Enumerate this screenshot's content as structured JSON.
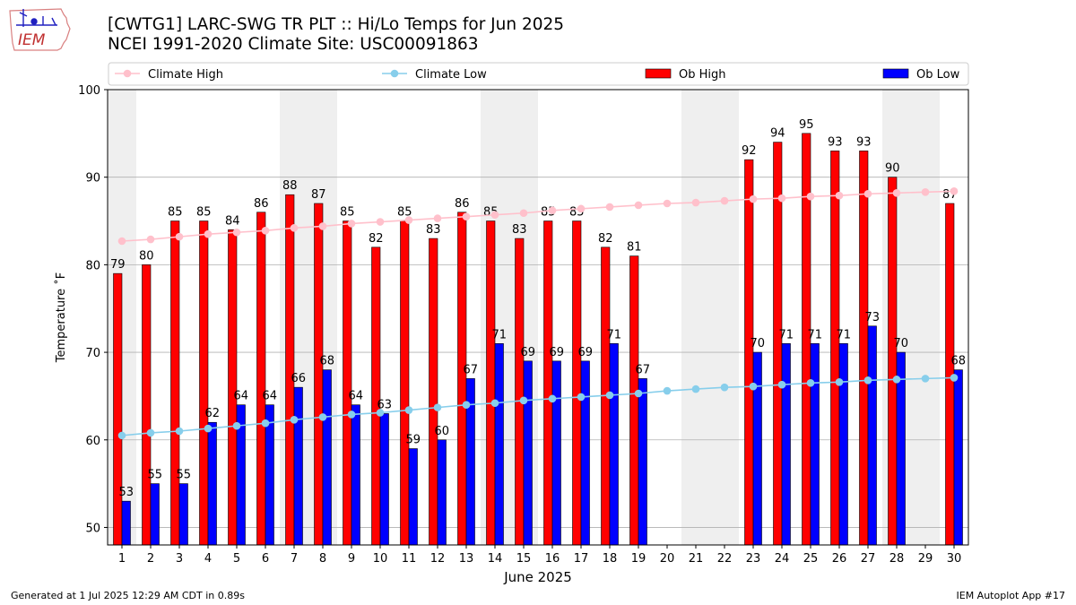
{
  "header": {
    "title": "[CWTG1] LARC-SWG TR PLT :: Hi/Lo Temps for Jun 2025",
    "subtitle": "NCEI 1991-2020 Climate Site: USC00091863",
    "logo_text": "IEM"
  },
  "footer": {
    "generated": "Generated at 1 Jul 2025 12:29 AM CDT in 0.89s",
    "app": "IEM Autoplot App #17"
  },
  "chart_data": {
    "type": "bar",
    "xlabel": "June 2025",
    "ylabel": "Temperature ˚F",
    "ylim": [
      48,
      100
    ],
    "yticks": [
      50,
      60,
      70,
      80,
      90,
      100
    ],
    "grid": "horizontal",
    "legend_position": "top",
    "shaded_days": [
      1,
      7,
      8,
      14,
      15,
      21,
      22,
      28,
      29
    ],
    "categories": [
      1,
      2,
      3,
      4,
      5,
      6,
      7,
      8,
      9,
      10,
      11,
      12,
      13,
      14,
      15,
      16,
      17,
      18,
      19,
      20,
      21,
      22,
      23,
      24,
      25,
      26,
      27,
      28,
      29,
      30
    ],
    "series": [
      {
        "name": "Climate High",
        "kind": "line",
        "color": "#ffc0cb",
        "values": [
          82.7,
          82.9,
          83.2,
          83.5,
          83.7,
          83.9,
          84.2,
          84.4,
          84.7,
          84.9,
          85.1,
          85.3,
          85.5,
          85.7,
          85.9,
          86.2,
          86.4,
          86.6,
          86.8,
          87.0,
          87.1,
          87.3,
          87.5,
          87.6,
          87.8,
          87.9,
          88.1,
          88.2,
          88.3,
          88.4
        ]
      },
      {
        "name": "Climate Low",
        "kind": "line",
        "color": "#87ceeb",
        "values": [
          60.5,
          60.8,
          61.0,
          61.3,
          61.6,
          61.9,
          62.3,
          62.6,
          62.9,
          63.1,
          63.4,
          63.7,
          64.0,
          64.2,
          64.5,
          64.7,
          64.9,
          65.1,
          65.3,
          65.6,
          65.8,
          66.0,
          66.1,
          66.3,
          66.5,
          66.6,
          66.8,
          66.9,
          67.0,
          67.1
        ]
      },
      {
        "name": "Ob High",
        "kind": "bar",
        "color": "#ff0000",
        "values": [
          79,
          80,
          85,
          85,
          84,
          86,
          88,
          87,
          85,
          82,
          85,
          83,
          86,
          85,
          83,
          85,
          85,
          82,
          81,
          null,
          null,
          null,
          92,
          94,
          95,
          93,
          93,
          90,
          null,
          87
        ]
      },
      {
        "name": "Ob Low",
        "kind": "bar",
        "color": "#0000ff",
        "values": [
          53,
          55,
          55,
          62,
          64,
          64,
          66,
          68,
          64,
          63,
          59,
          60,
          67,
          71,
          69,
          69,
          69,
          71,
          67,
          null,
          null,
          null,
          70,
          71,
          71,
          71,
          73,
          70,
          null,
          68
        ]
      }
    ]
  }
}
